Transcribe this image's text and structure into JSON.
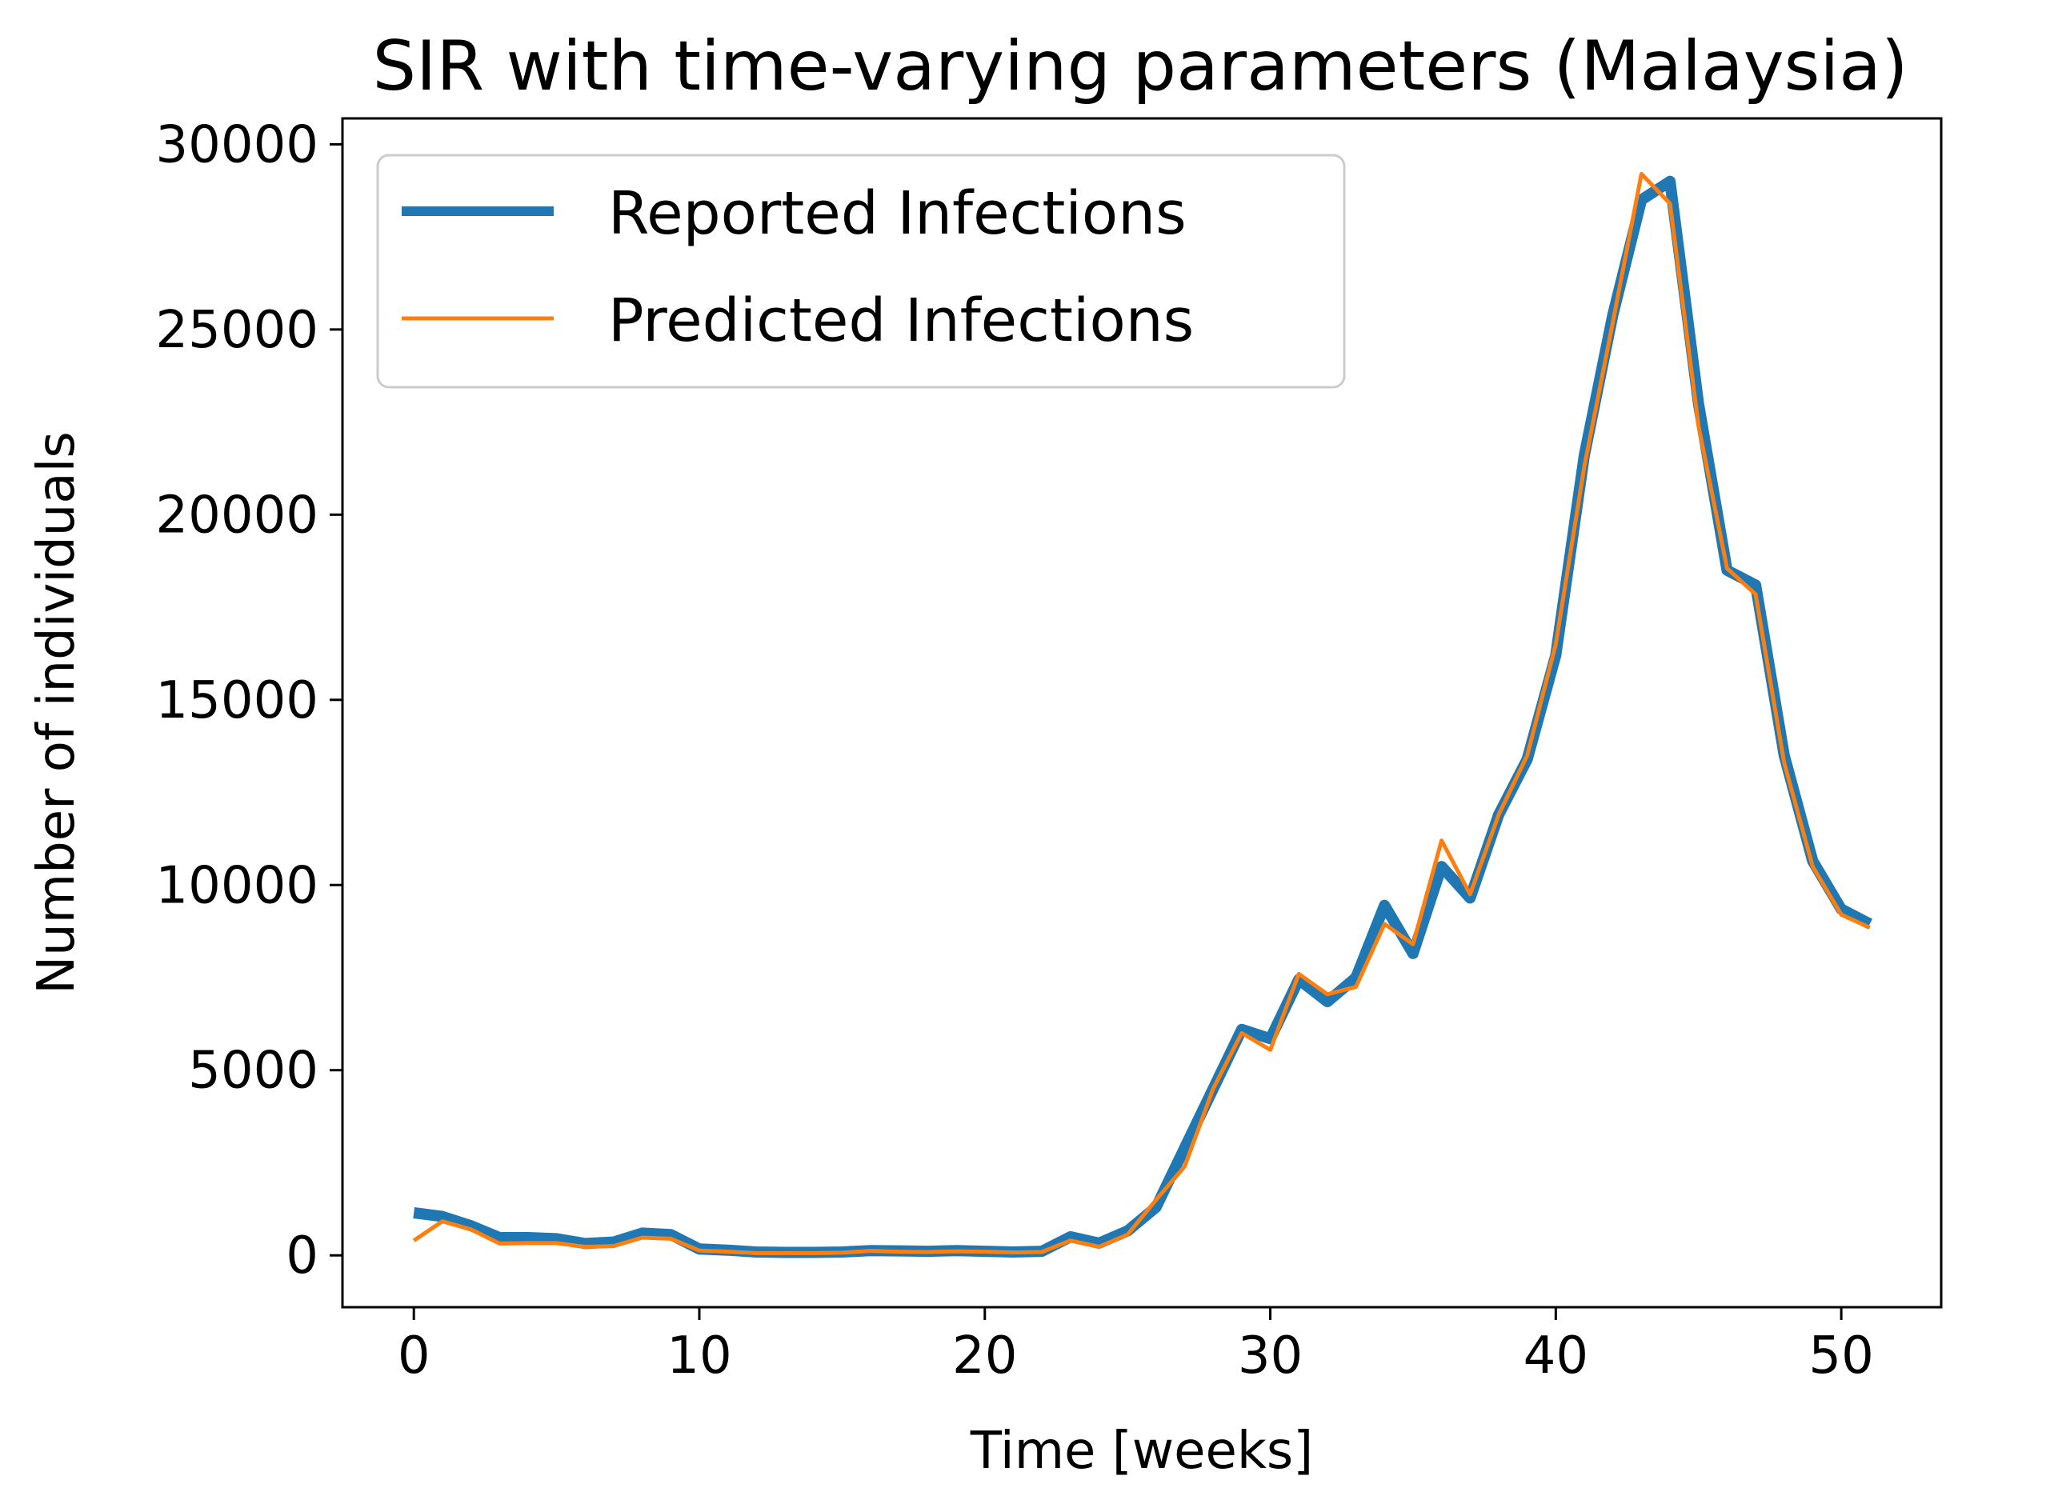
{
  "chart_data": {
    "type": "line",
    "title": "SIR with time-varying parameters (Malaysia)",
    "xlabel": "Time [weeks]",
    "ylabel": "Number of individuals",
    "xlim": [
      -2.5,
      53.5
    ],
    "ylim": [
      -1400,
      30700
    ],
    "xticks": [
      0,
      10,
      20,
      30,
      40,
      50
    ],
    "yticks": [
      0,
      5000,
      10000,
      15000,
      20000,
      25000,
      30000
    ],
    "grid": false,
    "legend_position": "upper-left",
    "x": [
      0,
      1,
      2,
      3,
      4,
      5,
      6,
      7,
      8,
      9,
      10,
      11,
      12,
      13,
      14,
      15,
      16,
      17,
      18,
      19,
      20,
      21,
      22,
      23,
      24,
      25,
      26,
      27,
      28,
      29,
      30,
      31,
      32,
      33,
      34,
      35,
      36,
      37,
      38,
      39,
      40,
      41,
      42,
      43,
      44,
      45,
      46,
      47,
      48,
      49,
      50,
      51
    ],
    "series": [
      {
        "name": "Reported Infections",
        "color": "#1f77b4",
        "line_width": "thick",
        "values": [
          1150,
          1050,
          800,
          480,
          480,
          450,
          320,
          360,
          600,
          560,
          170,
          140,
          90,
          80,
          80,
          90,
          130,
          120,
          110,
          130,
          110,
          90,
          110,
          500,
          330,
          660,
          1300,
          2900,
          4500,
          6100,
          5850,
          7450,
          6850,
          7500,
          9450,
          8150,
          10500,
          9650,
          11900,
          13400,
          16200,
          21600,
          25400,
          28500,
          29000,
          23000,
          18500,
          18100,
          13500,
          10650,
          9350,
          8950
        ]
      },
      {
        "name": "Predicted Infections",
        "color": "#ff7f0e",
        "line_width": "thin",
        "values": [
          400,
          920,
          700,
          320,
          330,
          330,
          230,
          250,
          480,
          450,
          130,
          100,
          60,
          60,
          60,
          70,
          120,
          100,
          90,
          110,
          100,
          80,
          90,
          400,
          230,
          560,
          1500,
          2400,
          4500,
          6000,
          5550,
          7600,
          7050,
          7250,
          8950,
          8400,
          11200,
          9750,
          11900,
          13500,
          16500,
          21300,
          25200,
          29200,
          28400,
          22400,
          18550,
          17850,
          13300,
          10500,
          9200,
          8850
        ]
      }
    ]
  }
}
